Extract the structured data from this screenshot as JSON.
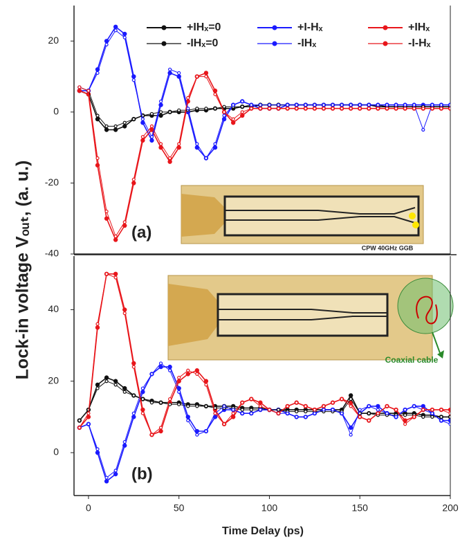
{
  "ylabel": "Lock-in voltage Vₒᵤₜ, (a. u.)",
  "chart_data": [
    {
      "type": "line",
      "label": "(a)",
      "inset_text": "CPW 40GHz GGB",
      "x": [
        -5,
        0,
        5,
        10,
        15,
        20,
        25,
        30,
        35,
        40,
        45,
        50,
        55,
        60,
        65,
        70,
        75,
        80,
        85,
        90,
        95,
        100,
        105,
        110,
        115,
        120,
        125,
        130,
        135,
        140,
        145,
        150,
        155,
        160,
        165,
        170,
        175,
        180,
        185,
        190,
        195,
        200
      ],
      "xlim": [
        -8,
        200
      ],
      "ylim": [
        -40,
        30
      ],
      "yticks": [
        -40,
        -20,
        0,
        20
      ],
      "series": [
        {
          "name": "+IHₓ=0",
          "color": "#111111",
          "values": [
            6,
            5,
            -2,
            -5,
            -5,
            -4,
            -2,
            -1,
            -1,
            -1,
            0,
            0,
            0,
            0.5,
            0.5,
            1,
            1,
            1,
            1.5,
            1.5,
            2,
            2,
            2,
            2,
            2,
            2,
            2,
            2,
            2,
            2,
            2,
            2,
            2,
            1.5,
            1.5,
            1.5,
            1.5,
            1.5,
            1.5,
            1.5,
            1.5,
            1.5
          ]
        },
        {
          "name": "+I-Hₓ",
          "color": "#1a1aff",
          "values": [
            6,
            6,
            12,
            20,
            24,
            22,
            10,
            -3,
            -8,
            2,
            11,
            10,
            0,
            -10,
            -13,
            -10,
            -2,
            2,
            3,
            2,
            1,
            1,
            1,
            2,
            2,
            2,
            2,
            2,
            2,
            2,
            2,
            2,
            2,
            2,
            2,
            2,
            2,
            2,
            2,
            2,
            2,
            2
          ]
        },
        {
          "name": "+IHₓ",
          "color": "#e8161b",
          "values": [
            6,
            5,
            -15,
            -30,
            -36,
            -32,
            -20,
            -8,
            -5,
            -10,
            -14,
            -10,
            3,
            10,
            11,
            6,
            0,
            -3,
            -1,
            1,
            1,
            1,
            1,
            1,
            1,
            1,
            1,
            1,
            1,
            1,
            1,
            1,
            1,
            1,
            1,
            1,
            1,
            1,
            1,
            1,
            1,
            1
          ]
        },
        {
          "name": "-IHₓ=0",
          "color": "#111111",
          "values": [
            7,
            6,
            -1,
            -4,
            -4,
            -3,
            -2,
            -1,
            -0.5,
            0,
            0,
            0.5,
            0.5,
            1,
            1,
            1,
            1.5,
            1.5,
            1.5,
            2,
            2,
            2,
            2,
            2,
            2,
            2,
            2,
            2,
            2,
            2,
            2,
            2,
            2,
            2,
            1.5,
            1.5,
            1.5,
            1.5,
            1.5,
            1.5,
            1.5,
            1.5
          ]
        },
        {
          "name": "-IHₓ",
          "color": "#1a1aff",
          "values": [
            7,
            6,
            11,
            19,
            23,
            21,
            9,
            -2,
            -7,
            3,
            12,
            11,
            1,
            -9,
            -13,
            -9,
            -1,
            2,
            3,
            2,
            2,
            2,
            2,
            2,
            2,
            2,
            2,
            2,
            2,
            2,
            2,
            2,
            2,
            2,
            2,
            2,
            2,
            2,
            -5,
            2,
            2,
            2
          ]
        },
        {
          "name": "-I-Hₓ",
          "color": "#e8161b",
          "values": [
            7,
            6,
            -13,
            -28,
            -35,
            -31,
            -19,
            -7,
            -4,
            -9,
            -13,
            -9,
            4,
            10,
            10,
            5,
            0,
            -2,
            0,
            1,
            1,
            1,
            1,
            1,
            1,
            1,
            1,
            1,
            1,
            1,
            1,
            1,
            1,
            1,
            1,
            1,
            1,
            1,
            1,
            1,
            1,
            1
          ]
        }
      ]
    },
    {
      "type": "line",
      "label": "(b)",
      "inset_text": "Coaxial cable",
      "xlabel": "Time Delay (ps)",
      "x": [
        -5,
        0,
        5,
        10,
        15,
        20,
        25,
        30,
        35,
        40,
        45,
        50,
        55,
        60,
        65,
        70,
        75,
        80,
        85,
        90,
        95,
        100,
        105,
        110,
        115,
        120,
        125,
        130,
        135,
        140,
        145,
        150,
        155,
        160,
        165,
        170,
        175,
        180,
        185,
        190,
        195,
        200
      ],
      "xlim": [
        -8,
        200
      ],
      "ylim": [
        -12,
        55
      ],
      "yticks": [
        0,
        20,
        40
      ],
      "xticks": [
        0,
        50,
        100,
        150,
        200
      ],
      "series": [
        {
          "color": "#111111",
          "values": [
            9,
            12,
            19,
            21,
            20,
            18,
            16,
            15,
            14.5,
            14,
            14,
            14,
            13.5,
            13.5,
            13,
            13,
            13,
            13,
            12.5,
            12.5,
            12.5,
            12,
            12,
            12,
            12,
            12,
            12,
            12,
            12,
            12,
            16,
            11,
            11,
            11,
            11,
            11,
            11,
            11,
            10.5,
            10.5,
            10,
            10
          ]
        },
        {
          "color": "#1a1aff",
          "values": [
            7,
            8,
            0,
            -8,
            -6,
            2,
            10,
            17,
            22,
            24,
            24,
            18,
            10,
            6,
            6,
            10,
            12,
            12,
            11,
            11,
            12,
            12,
            12,
            11,
            10,
            10,
            11,
            12,
            12,
            11,
            7,
            11,
            13,
            13,
            11,
            10,
            12,
            13,
            13,
            11,
            9,
            9
          ]
        },
        {
          "color": "#e8161b",
          "values": [
            7,
            10,
            35,
            50,
            50,
            40,
            25,
            12,
            5,
            6,
            14,
            20,
            22,
            23,
            20,
            12,
            8,
            10,
            14,
            15,
            14,
            12,
            11,
            13,
            14,
            13,
            12,
            13,
            14,
            15,
            14,
            10,
            9,
            11,
            13,
            12,
            9,
            10,
            12,
            12,
            12,
            12
          ]
        },
        {
          "color": "#111111",
          "values": [
            9,
            12,
            18,
            20,
            19,
            17,
            16,
            15,
            14,
            14,
            13.5,
            13.5,
            13,
            13,
            13,
            12.5,
            12.5,
            12.5,
            12,
            12,
            12,
            12,
            12,
            11.5,
            11.5,
            11.5,
            11.5,
            11.5,
            11.5,
            11.5,
            15,
            11,
            11,
            10.5,
            10.5,
            10.5,
            10.5,
            10.5,
            10,
            10,
            10,
            10
          ]
        },
        {
          "color": "#1a1aff",
          "values": [
            7,
            8,
            1,
            -7,
            -5,
            3,
            11,
            18,
            22,
            25,
            23,
            17,
            9,
            5,
            6,
            11,
            13,
            12,
            11,
            11,
            12,
            12,
            11,
            11,
            10,
            10,
            11,
            12,
            12,
            11,
            5,
            12,
            13,
            12,
            11,
            10,
            12,
            13,
            12,
            11,
            9,
            8
          ]
        },
        {
          "color": "#e8161b",
          "values": [
            7,
            11,
            36,
            50,
            49,
            39,
            24,
            11,
            5,
            7,
            15,
            21,
            23,
            22,
            19,
            11,
            8,
            11,
            14,
            15,
            13,
            12,
            11,
            13,
            14,
            13,
            12,
            13,
            14,
            15,
            13,
            10,
            9,
            11,
            13,
            12,
            8,
            10,
            12,
            12,
            12,
            11
          ]
        }
      ]
    }
  ]
}
